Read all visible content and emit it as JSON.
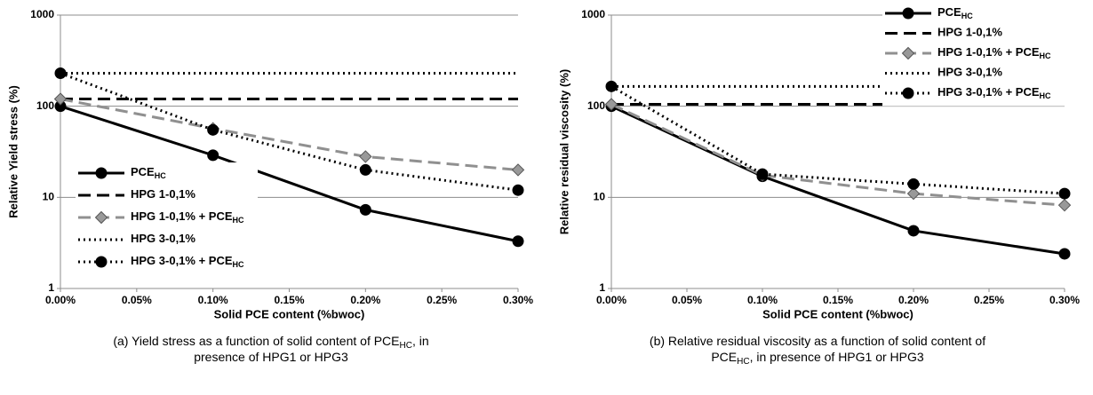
{
  "chart_data": [
    {
      "type": "line",
      "xlabel": "Solid PCE content (%bwoc)",
      "ylabel": "Relative Yield stress (%)",
      "x": [
        0,
        0.1,
        0.2,
        0.3
      ],
      "xlim": [
        0,
        0.3
      ],
      "xticks": [
        {
          "value": 0,
          "label": "0.00%"
        },
        {
          "value": 0.05,
          "label": "0.05%"
        },
        {
          "value": 0.1,
          "label": "0.10%"
        },
        {
          "value": 0.15,
          "label": "0.15%"
        },
        {
          "value": 0.2,
          "label": "0.20%"
        },
        {
          "value": 0.25,
          "label": "0.25%"
        },
        {
          "value": 0.3,
          "label": "0.30%"
        }
      ],
      "ylim": [
        1,
        1000
      ],
      "yticks": [
        1,
        10,
        100,
        1000
      ],
      "log_y": true,
      "grid": true,
      "legend": "lower left",
      "series": [
        {
          "name": "PCE",
          "name_subscript": "HC",
          "color": "#000000",
          "dash": "solid",
          "marker": "circle",
          "values": [
            100,
            29,
            7.3,
            3.3
          ]
        },
        {
          "name": "HPG 1-0,1%",
          "color": "#000000",
          "dash": "dash",
          "marker": "none",
          "values": [
            120,
            120,
            120,
            120
          ]
        },
        {
          "name": "HPG 1-0,1% + PCE",
          "name_subscript": "HC",
          "color": "#909090",
          "dash": "dash",
          "marker": "diamond",
          "values": [
            120,
            57,
            28,
            20
          ]
        },
        {
          "name": "HPG 3-0,1%",
          "color": "#000000",
          "dash": "dot",
          "marker": "none",
          "values": [
            230,
            230,
            230,
            230
          ]
        },
        {
          "name": "HPG 3-0,1% + PCE",
          "name_subscript": "HC",
          "color": "#000000",
          "dash": "dot",
          "marker": "circle",
          "values": [
            230,
            55,
            20,
            12
          ]
        }
      ],
      "caption": [
        [
          {
            "text": "(a) Yield stress as a function of solid content of PCE"
          },
          {
            "text": "HC",
            "sub": true
          },
          {
            "text": ", in"
          }
        ],
        [
          {
            "text": "presence of HPG1 or HPG3"
          }
        ]
      ]
    },
    {
      "type": "line",
      "xlabel": "Solid PCE content (%bwoc)",
      "ylabel": "Relative residual viscosity (%)",
      "x": [
        0,
        0.1,
        0.2,
        0.3
      ],
      "xlim": [
        0,
        0.3
      ],
      "xticks": [
        {
          "value": 0,
          "label": "0.00%"
        },
        {
          "value": 0.05,
          "label": "0.05%"
        },
        {
          "value": 0.1,
          "label": "0.10%"
        },
        {
          "value": 0.15,
          "label": "0.15%"
        },
        {
          "value": 0.2,
          "label": "0.20%"
        },
        {
          "value": 0.25,
          "label": "0.25%"
        },
        {
          "value": 0.3,
          "label": "0.30%"
        }
      ],
      "ylim": [
        1,
        1000
      ],
      "yticks": [
        1,
        10,
        100,
        1000
      ],
      "log_y": true,
      "grid": true,
      "legend": "upper right",
      "series": [
        {
          "name": "PCE",
          "name_subscript": "HC",
          "color": "#000000",
          "dash": "solid",
          "marker": "circle",
          "values": [
            100,
            17,
            4.3,
            2.4
          ]
        },
        {
          "name": "HPG 1-0,1%",
          "color": "#000000",
          "dash": "dash",
          "marker": "none",
          "values": [
            105,
            105,
            105,
            105
          ]
        },
        {
          "name": "HPG 1-0,1% + PCE",
          "name_subscript": "HC",
          "color": "#909090",
          "dash": "dash",
          "marker": "diamond",
          "values": [
            105,
            17.5,
            11,
            8.2
          ]
        },
        {
          "name": "HPG 3-0,1%",
          "color": "#000000",
          "dash": "dot",
          "marker": "none",
          "values": [
            165,
            165,
            165,
            165
          ]
        },
        {
          "name": "HPG 3-0,1% + PCE",
          "name_subscript": "HC",
          "color": "#000000",
          "dash": "dot",
          "marker": "circle",
          "values": [
            165,
            18,
            14,
            11
          ]
        }
      ],
      "caption": [
        [
          {
            "text": "(b) Relative residual viscosity as a function of solid content of"
          }
        ],
        [
          {
            "text": "PCE"
          },
          {
            "text": "HC",
            "sub": true
          },
          {
            "text": ", in presence of HPG1 or HPG3"
          }
        ]
      ]
    }
  ]
}
